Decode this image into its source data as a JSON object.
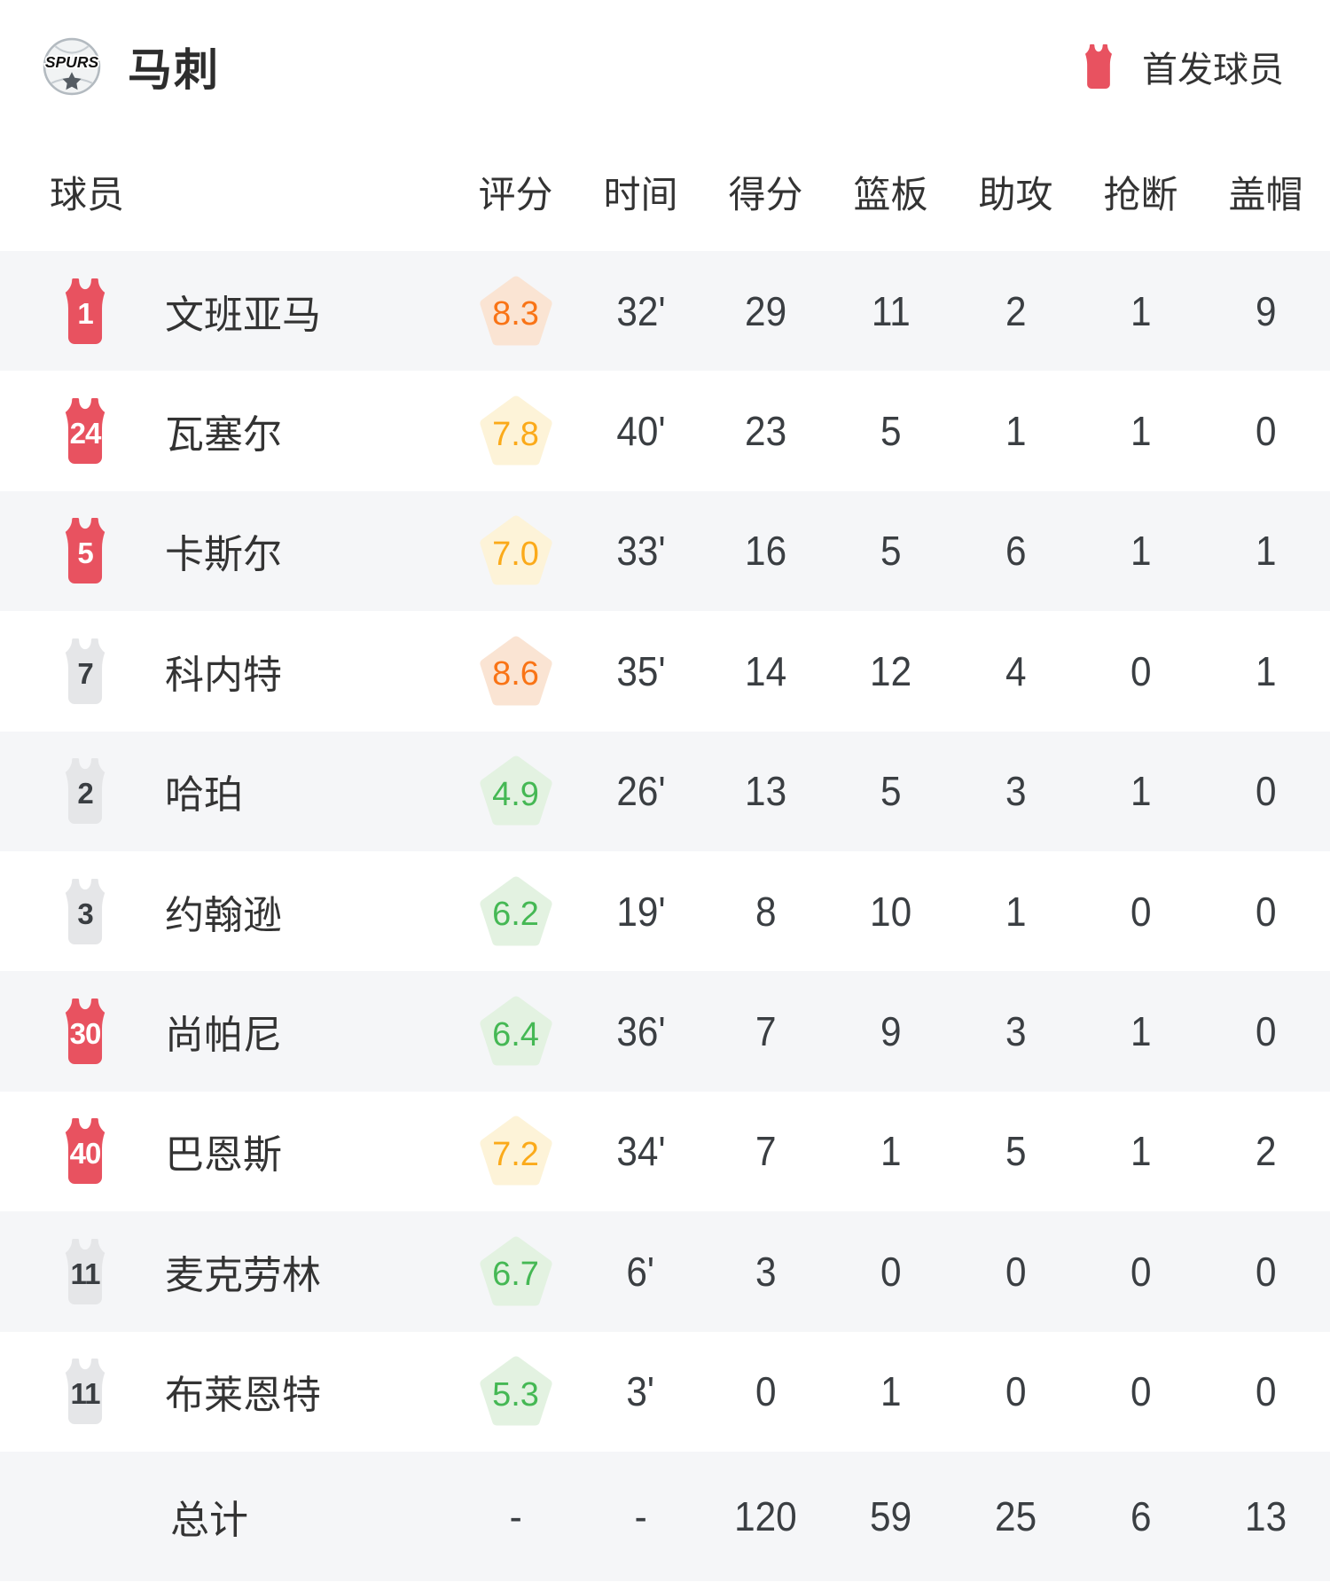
{
  "header": {
    "team_name": "马刺",
    "logo_text": "SPURS",
    "legend_label": "首发球员"
  },
  "columns": [
    "球员",
    "评分",
    "时间",
    "得分",
    "篮板",
    "助攻",
    "抢断",
    "盖帽"
  ],
  "players": [
    {
      "number": "1",
      "starter": true,
      "name": "文班亚马",
      "rating": "8.3",
      "rating_tier": "orange",
      "time": "32'",
      "points": "29",
      "rebounds": "11",
      "assists": "2",
      "steals": "1",
      "blocks": "9"
    },
    {
      "number": "24",
      "starter": true,
      "name": "瓦塞尔",
      "rating": "7.8",
      "rating_tier": "amber",
      "time": "40'",
      "points": "23",
      "rebounds": "5",
      "assists": "1",
      "steals": "1",
      "blocks": "0"
    },
    {
      "number": "5",
      "starter": true,
      "name": "卡斯尔",
      "rating": "7.0",
      "rating_tier": "amber",
      "time": "33'",
      "points": "16",
      "rebounds": "5",
      "assists": "6",
      "steals": "1",
      "blocks": "1"
    },
    {
      "number": "7",
      "starter": false,
      "name": "科内特",
      "rating": "8.6",
      "rating_tier": "orange",
      "time": "35'",
      "points": "14",
      "rebounds": "12",
      "assists": "4",
      "steals": "0",
      "blocks": "1"
    },
    {
      "number": "2",
      "starter": false,
      "name": "哈珀",
      "rating": "4.9",
      "rating_tier": "green",
      "time": "26'",
      "points": "13",
      "rebounds": "5",
      "assists": "3",
      "steals": "1",
      "blocks": "0"
    },
    {
      "number": "3",
      "starter": false,
      "name": "约翰逊",
      "rating": "6.2",
      "rating_tier": "green",
      "time": "19'",
      "points": "8",
      "rebounds": "10",
      "assists": "1",
      "steals": "0",
      "blocks": "0"
    },
    {
      "number": "30",
      "starter": true,
      "name": "尚帕尼",
      "rating": "6.4",
      "rating_tier": "green",
      "time": "36'",
      "points": "7",
      "rebounds": "9",
      "assists": "3",
      "steals": "1",
      "blocks": "0"
    },
    {
      "number": "40",
      "starter": true,
      "name": "巴恩斯",
      "rating": "7.2",
      "rating_tier": "amber",
      "time": "34'",
      "points": "7",
      "rebounds": "1",
      "assists": "5",
      "steals": "1",
      "blocks": "2"
    },
    {
      "number": "11",
      "starter": false,
      "name": "麦克劳林",
      "rating": "6.7",
      "rating_tier": "green",
      "time": "6'",
      "points": "3",
      "rebounds": "0",
      "assists": "0",
      "steals": "0",
      "blocks": "0"
    },
    {
      "number": "11",
      "starter": false,
      "name": "布莱恩特",
      "rating": "5.3",
      "rating_tier": "green",
      "time": "3'",
      "points": "0",
      "rebounds": "1",
      "assists": "0",
      "steals": "0",
      "blocks": "0"
    }
  ],
  "total": {
    "label": "总计",
    "rating": "-",
    "time": "-",
    "points": "120",
    "rebounds": "59",
    "assists": "25",
    "steals": "6",
    "blocks": "13"
  },
  "colors": {
    "starter_red": "#e85260",
    "bench_gray": "#e5e6e8",
    "row_alt_bg": "#f5f6f8",
    "rating_orange": "#f97416",
    "rating_amber": "#fbaa1a",
    "rating_green": "#45b854"
  }
}
